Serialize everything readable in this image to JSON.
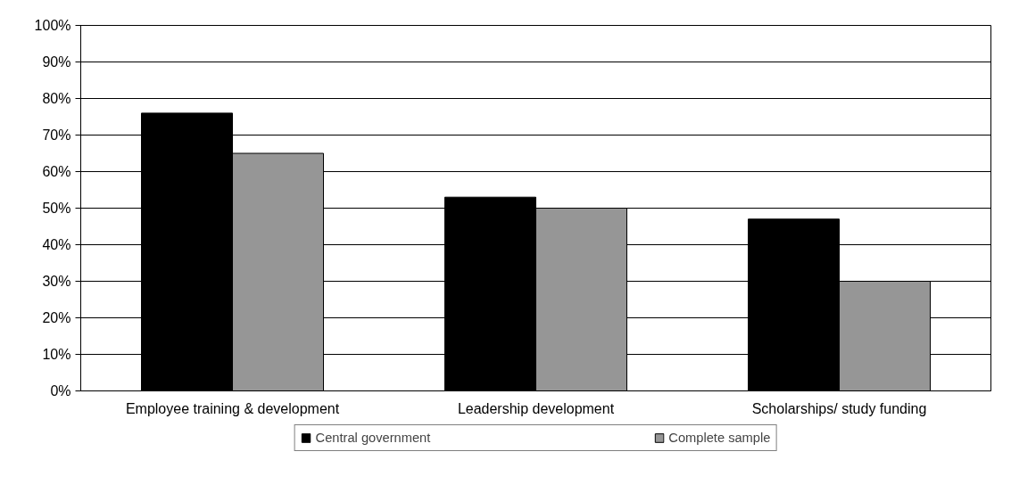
{
  "chart_data": {
    "type": "bar",
    "categories": [
      "Employee training & development",
      "Leadership development",
      "Scholarships/ study funding"
    ],
    "series": [
      {
        "name": "Central government",
        "color": "#000000",
        "values": [
          76,
          53,
          47
        ]
      },
      {
        "name": "Complete sample",
        "color": "#969696",
        "values": [
          65,
          50,
          30
        ]
      }
    ],
    "ylim": [
      0,
      100
    ],
    "yticks": [
      {
        "value": 0,
        "label": "0%"
      },
      {
        "value": 10,
        "label": "10%"
      },
      {
        "value": 20,
        "label": "20%"
      },
      {
        "value": 30,
        "label": "30%"
      },
      {
        "value": 40,
        "label": "40%"
      },
      {
        "value": 50,
        "label": "50%"
      },
      {
        "value": 60,
        "label": "60%"
      },
      {
        "value": 70,
        "label": "70%"
      },
      {
        "value": 80,
        "label": "80%"
      },
      {
        "value": 90,
        "label": "90%"
      },
      {
        "value": 100,
        "label": "100%"
      }
    ],
    "grid": "y",
    "legend": "bottom"
  }
}
